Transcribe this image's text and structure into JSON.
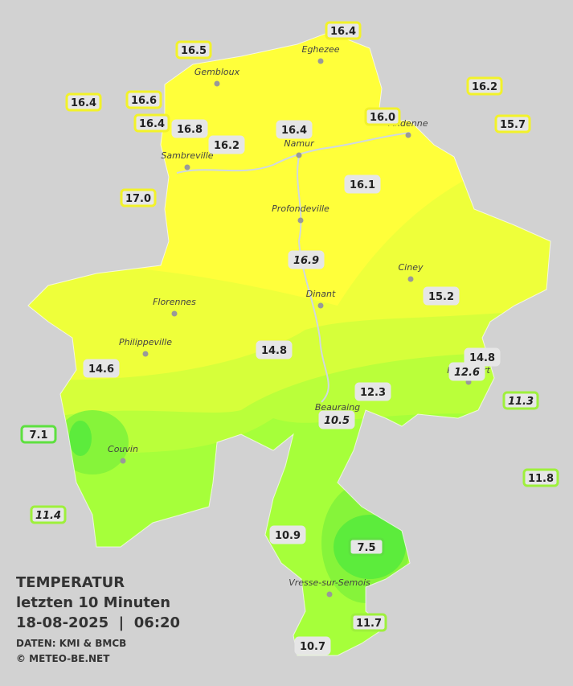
{
  "legend": {
    "title": "TEMPERATUR",
    "period": "letzten 10 Minuten",
    "timestamp": "18-08-2025  |  06:20",
    "source": "DATEN: KMI & BMCB",
    "copyright": "© METEO-BE.NET"
  },
  "cities": [
    "Eghezee",
    "Gembloux",
    "Andenne",
    "Namur",
    "Sambreville",
    "Profondeville",
    "Ciney",
    "Dinant",
    "Florennes",
    "Philippeville",
    "Rochefort",
    "Beauraing",
    "Couvin",
    "Vresse-sur-Semois"
  ],
  "stations": [
    {
      "label": "16.4",
      "border": "#f2f22a",
      "italic": false
    },
    {
      "label": "16.5",
      "border": "#f2f22a",
      "italic": false
    },
    {
      "label": "16.2",
      "border": "#f2f22a",
      "italic": false
    },
    {
      "label": "16.4",
      "border": "#f2f22a",
      "italic": false
    },
    {
      "label": "16.6",
      "border": "#f2f22a",
      "italic": false
    },
    {
      "label": "16.4",
      "border": "#f2f22a",
      "italic": false
    },
    {
      "label": "16.8",
      "border": "#e6e6e6",
      "italic": false
    },
    {
      "label": "16.2",
      "border": "#e6e6e6",
      "italic": false
    },
    {
      "label": "16.4",
      "border": "#e6e6e6",
      "italic": false
    },
    {
      "label": "16.0",
      "border": "#f2f22a",
      "italic": false
    },
    {
      "label": "15.7",
      "border": "#f2f22a",
      "italic": false
    },
    {
      "label": "17.0",
      "border": "#f2f22a",
      "italic": false
    },
    {
      "label": "16.1",
      "border": "#e6e6e6",
      "italic": false
    },
    {
      "label": "16.9",
      "border": "#e6e6e6",
      "italic": true
    },
    {
      "label": "15.2",
      "border": "#e6e6e6",
      "italic": false
    },
    {
      "label": "14.8",
      "border": "#e6e6e6",
      "italic": false
    },
    {
      "label": "14.6",
      "border": "#e6e6e6",
      "italic": false
    },
    {
      "label": "14.8",
      "border": "#e6e6e6",
      "italic": false
    },
    {
      "label": "12.6",
      "border": "#e6e6e6",
      "italic": true
    },
    {
      "label": "12.3",
      "border": "#e6e6e6",
      "italic": false
    },
    {
      "label": "11.3",
      "border": "#9ef03c",
      "italic": true
    },
    {
      "label": "10.5",
      "border": "#e6e6e6",
      "italic": true
    },
    {
      "label": "7.1",
      "border": "#5ee040",
      "italic": false
    },
    {
      "label": "11.8",
      "border": "#9ef03c",
      "italic": false
    },
    {
      "label": "11.4",
      "border": "#9ef03c",
      "italic": true
    },
    {
      "label": "10.9",
      "border": "#e6e6e6",
      "italic": false
    },
    {
      "label": "7.5",
      "border": "#5ee040",
      "italic": false
    },
    {
      "label": "11.7",
      "border": "#9ef03c",
      "italic": false
    },
    {
      "label": "10.7",
      "border": "#e6e6e6",
      "italic": false
    }
  ]
}
